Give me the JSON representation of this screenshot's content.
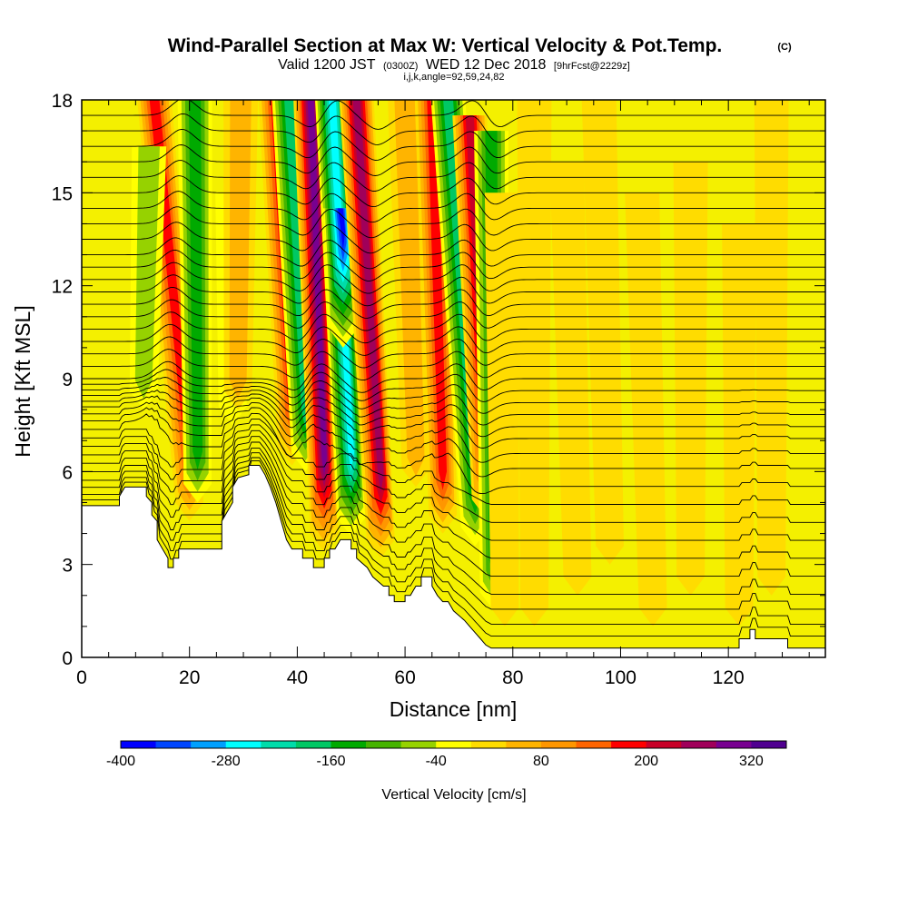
{
  "header": {
    "title": "Wind-Parallel Section at Max W: Vertical Velocity & Pot.Temp.",
    "copyright": "(C)",
    "subtitle_main": "Valid 1200 JST",
    "subtitle_z": "(0300Z)",
    "subtitle_date": "WED 12 Dec 2018",
    "subtitle_fcst": "[9hrFcst@2229z]",
    "subtitle_index": "i,j,k,angle=92,59,24,82"
  },
  "colorbar": {
    "label": "Vertical Velocity [cm/s]",
    "bounds": [
      -400,
      -360,
      -320,
      -280,
      -240,
      -200,
      -160,
      -120,
      -80,
      -40,
      0,
      40,
      80,
      120,
      160,
      200,
      240,
      280,
      320,
      360
    ],
    "colors": [
      "#0000ff",
      "#0046ff",
      "#00a0ff",
      "#00ffff",
      "#00dcaa",
      "#00c864",
      "#00aa00",
      "#46b400",
      "#96d200",
      "#ffff00",
      "#ffdc00",
      "#ffb400",
      "#ff9600",
      "#ff6400",
      "#ff0000",
      "#c80028",
      "#a0005a",
      "#780090",
      "#500090"
    ],
    "tick_labels": [
      "-400",
      "-280",
      "-160",
      "-40",
      "80",
      "200",
      "320"
    ]
  },
  "chart_data": {
    "type": "heatmap",
    "title": "Wind-Parallel Section at Max W: Vertical Velocity & Pot.Temp.",
    "xlabel": "Distance [nm]",
    "ylabel": "Height [Kft MSL]",
    "xlim": [
      0,
      138
    ],
    "ylim": [
      0,
      18
    ],
    "xticks": [
      0,
      20,
      40,
      60,
      80,
      100,
      120
    ],
    "yticks": [
      0,
      3,
      6,
      9,
      12,
      15,
      18
    ],
    "x_tick_labels": [
      "0",
      "20",
      "40",
      "60",
      "80",
      "100",
      "120"
    ],
    "y_tick_labels": [
      "0",
      "3",
      "6",
      "9",
      "12",
      "15",
      "18"
    ],
    "variable": "Vertical Velocity",
    "units": "cm/s",
    "terrain_top_kft": [
      [
        0,
        4.9
      ],
      [
        7,
        4.9
      ],
      [
        7,
        5.2
      ],
      [
        8,
        5.5
      ],
      [
        12,
        5.5
      ],
      [
        12,
        5.2
      ],
      [
        13,
        5.0
      ],
      [
        13,
        4.6
      ],
      [
        14,
        4.4
      ],
      [
        14,
        3.8
      ],
      [
        15,
        3.5
      ],
      [
        16,
        3.2
      ],
      [
        16,
        2.9
      ],
      [
        17,
        2.9
      ],
      [
        17,
        3.2
      ],
      [
        18,
        3.2
      ],
      [
        18,
        3.5
      ],
      [
        20,
        3.5
      ],
      [
        21,
        3.5
      ],
      [
        26,
        3.5
      ],
      [
        26,
        4.4
      ],
      [
        28,
        5.0
      ],
      [
        28,
        5.5
      ],
      [
        29,
        5.8
      ],
      [
        31,
        5.9
      ],
      [
        31,
        6.2
      ],
      [
        33,
        6.2
      ],
      [
        34,
        5.9
      ],
      [
        35,
        5.5
      ],
      [
        36,
        5.0
      ],
      [
        37,
        4.4
      ],
      [
        38,
        3.8
      ],
      [
        39,
        3.5
      ],
      [
        41,
        3.5
      ],
      [
        41,
        3.2
      ],
      [
        43,
        3.2
      ],
      [
        43,
        2.9
      ],
      [
        45,
        2.9
      ],
      [
        45,
        3.2
      ],
      [
        46,
        3.2
      ],
      [
        46,
        3.5
      ],
      [
        47,
        3.5
      ],
      [
        48,
        3.8
      ],
      [
        50,
        3.8
      ],
      [
        50,
        3.5
      ],
      [
        51,
        3.5
      ],
      [
        51,
        3.2
      ],
      [
        53,
        2.9
      ],
      [
        54,
        2.6
      ],
      [
        56,
        2.3
      ],
      [
        57,
        2.3
      ],
      [
        57,
        2.0
      ],
      [
        58,
        2.0
      ],
      [
        58,
        1.8
      ],
      [
        60,
        1.8
      ],
      [
        60,
        2.0
      ],
      [
        61,
        2.0
      ],
      [
        62,
        2.3
      ],
      [
        63,
        2.3
      ],
      [
        63,
        2.6
      ],
      [
        65,
        2.6
      ],
      [
        65,
        2.3
      ],
      [
        66,
        2.0
      ],
      [
        67,
        1.8
      ],
      [
        68,
        1.8
      ],
      [
        69,
        1.5
      ],
      [
        71,
        1.2
      ],
      [
        72,
        1.0
      ],
      [
        73,
        0.8
      ],
      [
        74,
        0.6
      ],
      [
        75,
        0.4
      ],
      [
        76,
        0.3
      ],
      [
        122,
        0.3
      ],
      [
        122,
        0.6
      ],
      [
        124,
        0.6
      ],
      [
        124,
        0.9
      ],
      [
        125,
        0.9
      ],
      [
        125,
        0.6
      ],
      [
        131,
        0.6
      ],
      [
        131,
        0.3
      ],
      [
        138,
        0.3
      ]
    ],
    "w_features": [
      {
        "x_top": 13.5,
        "x_bottom": 20,
        "z_top": 18,
        "z_bottom": 4.4,
        "w": 200
      },
      {
        "x_top": 21.0,
        "x_bottom": 21.5,
        "z_top": 18,
        "z_bottom": 5.0,
        "w": -160
      },
      {
        "x_top": 12.5,
        "x_bottom": 11.5,
        "z_top": 16.5,
        "z_bottom": 8.0,
        "w": -80
      },
      {
        "x_top": 28.0,
        "x_bottom": 28.0,
        "z_top": 15.0,
        "z_bottom": 7.5,
        "w": -40
      },
      {
        "x_top": 29.5,
        "x_bottom": 29.0,
        "z_top": 18,
        "z_bottom": 8.0,
        "w": 80
      },
      {
        "x_top": 36.0,
        "x_bottom": 39.0,
        "z_top": 18,
        "z_bottom": 6.2,
        "w": 200
      },
      {
        "x_top": 38.5,
        "x_bottom": 41.5,
        "z_top": 18,
        "z_bottom": 6.0,
        "w": -200
      },
      {
        "x_top": 42.5,
        "x_bottom": 45.0,
        "z_top": 18,
        "z_bottom": 3.4,
        "w": 320
      },
      {
        "x_top": 46.5,
        "x_bottom": 50.0,
        "z_top": 18,
        "z_bottom": 3.9,
        "w": -280
      },
      {
        "x_top": 48.0,
        "x_bottom": 48.5,
        "z_top": 14.5,
        "z_bottom": 10.0,
        "w": -400
      },
      {
        "x_top": 51.0,
        "x_bottom": 55.5,
        "z_top": 18,
        "z_bottom": 3.2,
        "w": 280
      },
      {
        "x_top": 60.0,
        "x_bottom": 62.0,
        "z_top": 18,
        "z_bottom": 5.5,
        "w": 80
      },
      {
        "x_top": 65.0,
        "x_bottom": 67.0,
        "z_top": 18,
        "z_bottom": 4.0,
        "w": 200
      },
      {
        "x_top": 68.0,
        "x_bottom": 73.0,
        "z_top": 18,
        "z_bottom": 3.6,
        "w": -200
      },
      {
        "x_top": 72.0,
        "x_bottom": 75.0,
        "z_top": 17.5,
        "z_bottom": 4.5,
        "w": 240
      },
      {
        "x_top": 76.0,
        "x_bottom": 76.5,
        "z_top": 17.0,
        "z_bottom": 1.5,
        "w": -160
      },
      {
        "x_top": 78.0,
        "x_bottom": 78.5,
        "z_top": 15.0,
        "z_bottom": 1.0,
        "w": 40
      },
      {
        "x_top": 84.0,
        "x_bottom": 84.0,
        "z_top": 18,
        "z_bottom": 1.0,
        "w": 40
      },
      {
        "x_top": 90.0,
        "x_bottom": 92.0,
        "z_top": 16.0,
        "z_bottom": 2.0,
        "w": 40
      },
      {
        "x_top": 96.0,
        "x_bottom": 98.0,
        "z_top": 18,
        "z_bottom": 3.0,
        "w": 40
      },
      {
        "x_top": 104.0,
        "x_bottom": 106.0,
        "z_top": 15.0,
        "z_bottom": 1.0,
        "w": 40
      },
      {
        "x_top": 113.0,
        "x_bottom": 113.0,
        "z_top": 16.0,
        "z_bottom": 2.0,
        "w": 40
      },
      {
        "x_top": 122.0,
        "x_bottom": 122.0,
        "z_top": 14.0,
        "z_bottom": 1.0,
        "w": 40
      },
      {
        "x_top": 128.0,
        "x_bottom": 128.0,
        "z_top": 18,
        "z_bottom": 2.0,
        "w": 40
      }
    ],
    "theta_contour_levels_kft": [
      0.4,
      0.8,
      1.3,
      1.8,
      2.4,
      3.0,
      3.6,
      4.2,
      4.8,
      5.4,
      6.0,
      6.5,
      7.0,
      7.4,
      7.8,
      8.2,
      8.6,
      9.0,
      9.4,
      9.8,
      10.2,
      10.6,
      11.0,
      11.4,
      11.8,
      12.2,
      12.6,
      13.0,
      13.5,
      14.0,
      14.5,
      15.0,
      15.5,
      16.0,
      16.5,
      17.0,
      17.5
    ]
  }
}
